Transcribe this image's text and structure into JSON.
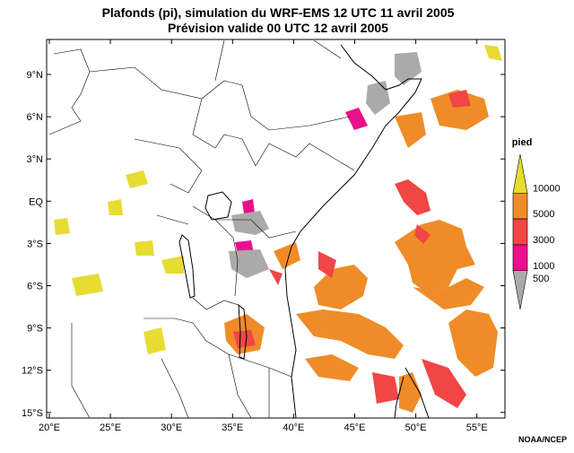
{
  "title": [
    "Plafonds (pi), simulation du WRF-EMS 12 UTC 11 avril 2005",
    "Prévision valide 00 UTC 12 avril 2005"
  ],
  "lat_labels": [
    "9°N",
    "6°N",
    "3°N",
    "EQ",
    "3°S",
    "6°S",
    "9°S",
    "12°S",
    "15°S"
  ],
  "lon_labels": [
    "20°E",
    "25°E",
    "30°E",
    "35°E",
    "40°E",
    "45°E",
    "50°E",
    "55°E"
  ],
  "legend": {
    "title": "pied",
    "items": [
      {
        "label": "10000",
        "color": "#e6dc32"
      },
      {
        "label": "5000",
        "color": "#ef8c28"
      },
      {
        "label": "3000",
        "color": "#f04646"
      },
      {
        "label": "1000",
        "color": "#ea0f8c"
      },
      {
        "label": "500",
        "color": "#aaaaaa"
      }
    ]
  },
  "credit": "NOAA/NCEP"
}
